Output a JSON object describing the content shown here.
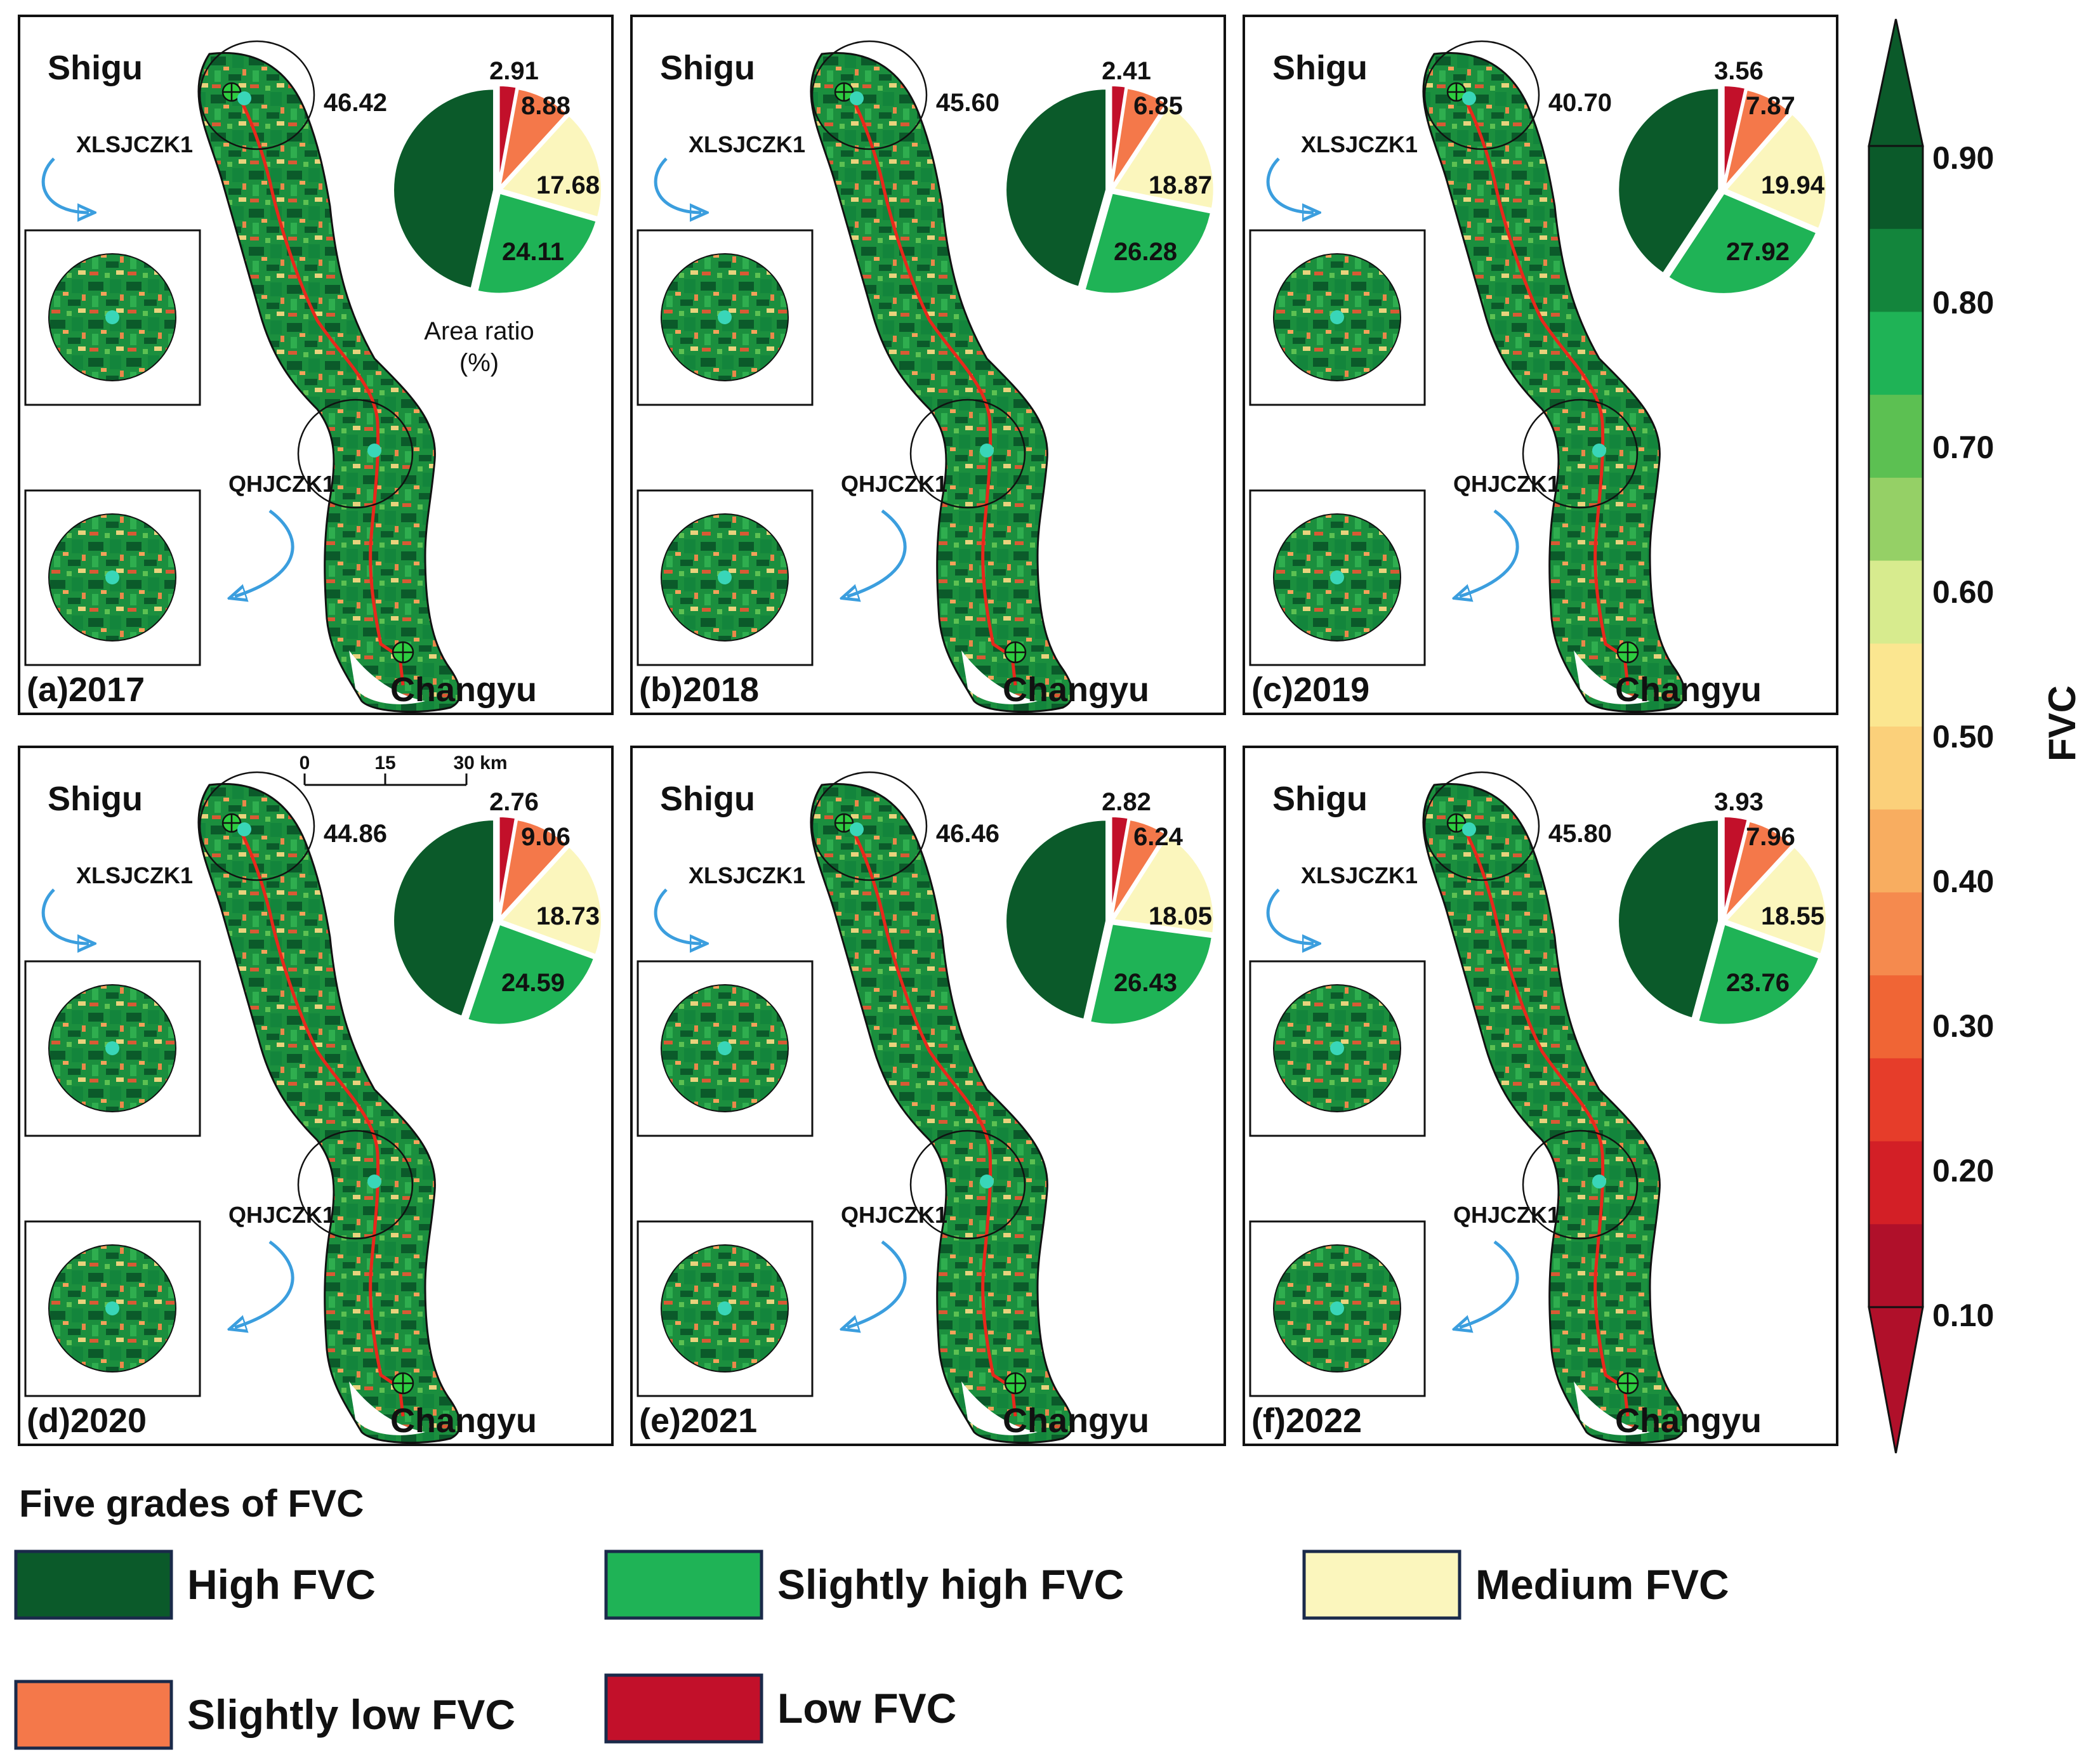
{
  "colors": {
    "high": "#0b5a2a",
    "slightly_high": "#1fb356",
    "medium": "#fbf6bd",
    "slightly_low": "#f4784a",
    "low": "#c2102a",
    "route": "#e8281c",
    "arrow": "#3b9ede",
    "marker": "#39d6b8"
  },
  "places": {
    "north": "Shigu",
    "south": "Changyu",
    "borehole_north": "XLSJCZK1",
    "borehole_south": "QHJCZK1"
  },
  "pie_caption": "Area ratio (%)",
  "scale_bar": {
    "ticks": [
      "0",
      "15",
      "30 km"
    ]
  },
  "panels": [
    {
      "label": "(a)2017",
      "high": 46.42,
      "slightly_high": 24.11,
      "medium": 17.68,
      "slightly_low": 8.88,
      "low": 2.91,
      "labels": {
        "high": "46.42",
        "slightly_high": "24.11",
        "medium": "17.68",
        "slightly_low": "8.88",
        "low": "2.91"
      }
    },
    {
      "label": "(b)2018",
      "high": 45.6,
      "slightly_high": 26.28,
      "medium": 18.87,
      "slightly_low": 6.85,
      "low": 2.41,
      "labels": {
        "high": "45.60",
        "slightly_high": "26.28",
        "medium": "18.87",
        "slightly_low": "6.85",
        "low": "2.41"
      }
    },
    {
      "label": "(c)2019",
      "high": 40.7,
      "slightly_high": 27.92,
      "medium": 19.94,
      "slightly_low": 7.87,
      "low": 3.56,
      "labels": {
        "high": "40.70",
        "slightly_high": "27.92",
        "medium": "19.94",
        "slightly_low": "7.87",
        "low": "3.56"
      }
    },
    {
      "label": "(d)2020",
      "high": 44.86,
      "slightly_high": 24.59,
      "medium": 18.73,
      "slightly_low": 9.06,
      "low": 2.76,
      "labels": {
        "high": "44.86",
        "slightly_high": "24.59",
        "medium": "18.73",
        "slightly_low": "9.06",
        "low": "2.76"
      }
    },
    {
      "label": "(e)2021",
      "high": 46.46,
      "slightly_high": 26.43,
      "medium": 18.05,
      "slightly_low": 6.24,
      "low": 2.82,
      "labels": {
        "high": "46.46",
        "slightly_high": "26.43",
        "medium": "18.05",
        "slightly_low": "6.24",
        "low": "2.82"
      }
    },
    {
      "label": "(f)2022",
      "high": 45.8,
      "slightly_high": 23.76,
      "medium": 18.55,
      "slightly_low": 7.96,
      "low": 3.93,
      "labels": {
        "high": "45.80",
        "slightly_high": "23.76",
        "medium": "18.55",
        "slightly_low": "7.96",
        "low": "3.93"
      }
    }
  ],
  "colorbar": {
    "title": "FVC",
    "ticks": [
      "0.90",
      "0.80",
      "0.70",
      "0.60",
      "0.50",
      "0.40",
      "0.30",
      "0.20",
      "0.10"
    ],
    "colors": [
      "#0b5a2a",
      "#13853c",
      "#1fb356",
      "#5cc052",
      "#95d066",
      "#d7eb8e",
      "#fbe690",
      "#fbd07a",
      "#f8ad60",
      "#f58a4e",
      "#f06535",
      "#e63d2a",
      "#d31f26",
      "#b0102a"
    ]
  },
  "legend": {
    "title": "Five grades of FVC",
    "items": [
      {
        "key": "high",
        "label": "High FVC"
      },
      {
        "key": "slightly_high",
        "label": "Slightly high FVC"
      },
      {
        "key": "medium",
        "label": "Medium FVC"
      },
      {
        "key": "slightly_low",
        "label": "Slightly low FVC"
      },
      {
        "key": "low",
        "label": "Low FVC"
      }
    ]
  }
}
